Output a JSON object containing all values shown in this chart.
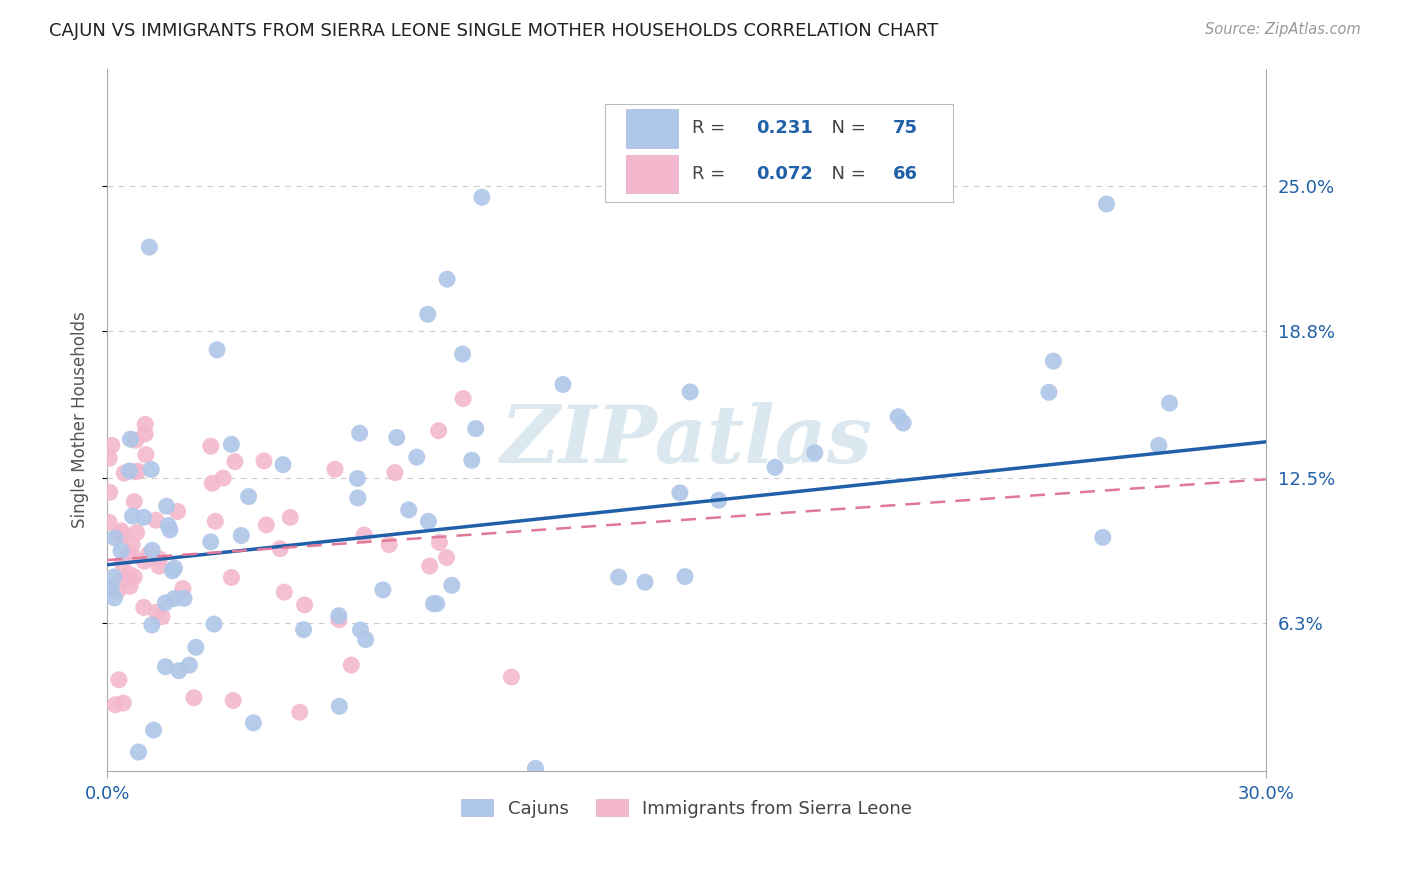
{
  "title": "CAJUN VS IMMIGRANTS FROM SIERRA LEONE SINGLE MOTHER HOUSEHOLDS CORRELATION CHART",
  "source": "Source: ZipAtlas.com",
  "ylabel": "Single Mother Households",
  "xlim": [
    0.0,
    0.3
  ],
  "ylim": [
    0.0,
    0.3
  ],
  "ytick_labels": [
    "6.3%",
    "12.5%",
    "18.8%",
    "25.0%"
  ],
  "ytick_values": [
    0.063,
    0.125,
    0.188,
    0.25
  ],
  "xtick_values": [
    0.0,
    0.3
  ],
  "xtick_labels": [
    "0.0%",
    "30.0%"
  ],
  "hline_values": [
    0.063,
    0.125,
    0.188,
    0.25
  ],
  "cajun_R": 0.231,
  "cajun_N": 75,
  "sierra_R": 0.072,
  "sierra_N": 66,
  "cajun_color": "#aec6e8",
  "sierra_color": "#f4b8ce",
  "cajun_line_color": "#2060a8",
  "sierra_line_color": "#e07898",
  "watermark": "ZIPatlas",
  "watermark_color": "#dce8f0",
  "background_color": "#ffffff",
  "grid_color": "#cccccc",
  "cajun_line_intercept": 0.088,
  "cajun_line_slope": 0.175,
  "sierra_line_intercept": 0.09,
  "sierra_line_slope": 0.115
}
